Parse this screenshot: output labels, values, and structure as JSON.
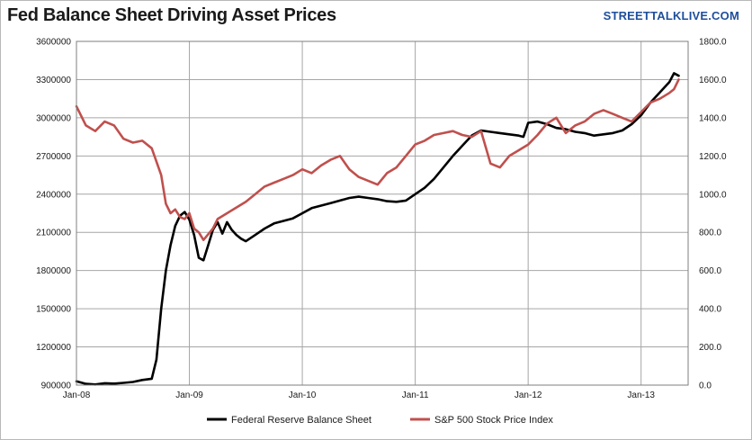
{
  "header": {
    "title": "Fed Balance Sheet Driving Asset Prices",
    "brand": "STREETTALKLIVE.COM"
  },
  "colors": {
    "fed": "#000000",
    "spx": "#c0504d",
    "grid": "#a6a6a6",
    "axis": "#7f7f7f"
  },
  "chart_data": {
    "type": "line",
    "title": "Fed Balance Sheet Driving Asset Prices",
    "x_unit": "months since Jan-08",
    "xlim": [
      0,
      65
    ],
    "x_ticks": [
      {
        "x": 0,
        "label": "Jan-08"
      },
      {
        "x": 12,
        "label": "Jan-09"
      },
      {
        "x": 24,
        "label": "Jan-10"
      },
      {
        "x": 36,
        "label": "Jan-11"
      },
      {
        "x": 48,
        "label": "Jan-12"
      },
      {
        "x": 60,
        "label": "Jan-13"
      }
    ],
    "y_left": {
      "range": [
        900000,
        3600000
      ],
      "ticks": [
        "900000",
        "1200000",
        "1500000",
        "1800000",
        "2100000",
        "2400000",
        "2700000",
        "3000000",
        "3300000",
        "3600000"
      ]
    },
    "y_right": {
      "range": [
        0,
        1800
      ],
      "ticks": [
        "0.0",
        "200.0",
        "400.0",
        "600.0",
        "800.0",
        "1000.0",
        "1200.0",
        "1400.0",
        "1600.0",
        "1800.0"
      ]
    },
    "grid": true,
    "legend_position": "bottom",
    "series": [
      {
        "name": "Federal Reserve Balance Sheet",
        "axis": "left",
        "points": [
          [
            0,
            930000
          ],
          [
            1,
            910000
          ],
          [
            2,
            905000
          ],
          [
            3,
            915000
          ],
          [
            4,
            912000
          ],
          [
            5,
            918000
          ],
          [
            6,
            925000
          ],
          [
            7,
            940000
          ],
          [
            8,
            950000
          ],
          [
            8.5,
            1100000
          ],
          [
            9,
            1500000
          ],
          [
            9.5,
            1800000
          ],
          [
            10,
            2000000
          ],
          [
            10.5,
            2150000
          ],
          [
            11,
            2230000
          ],
          [
            11.5,
            2260000
          ],
          [
            12,
            2200000
          ],
          [
            12.5,
            2080000
          ],
          [
            13,
            1900000
          ],
          [
            13.5,
            1880000
          ],
          [
            14,
            2000000
          ],
          [
            14.5,
            2120000
          ],
          [
            15,
            2180000
          ],
          [
            15.5,
            2090000
          ],
          [
            16,
            2180000
          ],
          [
            16.5,
            2120000
          ],
          [
            17,
            2080000
          ],
          [
            17.5,
            2050000
          ],
          [
            18,
            2030000
          ],
          [
            19,
            2080000
          ],
          [
            20,
            2130000
          ],
          [
            21,
            2170000
          ],
          [
            22,
            2190000
          ],
          [
            23,
            2210000
          ],
          [
            24,
            2250000
          ],
          [
            25,
            2290000
          ],
          [
            26,
            2310000
          ],
          [
            27,
            2330000
          ],
          [
            28,
            2350000
          ],
          [
            29,
            2370000
          ],
          [
            30,
            2380000
          ],
          [
            31,
            2370000
          ],
          [
            32,
            2360000
          ],
          [
            33,
            2345000
          ],
          [
            34,
            2340000
          ],
          [
            35,
            2350000
          ],
          [
            36,
            2400000
          ],
          [
            37,
            2450000
          ],
          [
            38,
            2520000
          ],
          [
            39,
            2610000
          ],
          [
            40,
            2700000
          ],
          [
            41,
            2780000
          ],
          [
            42,
            2860000
          ],
          [
            43,
            2900000
          ],
          [
            44,
            2890000
          ],
          [
            45,
            2880000
          ],
          [
            46,
            2870000
          ],
          [
            47,
            2860000
          ],
          [
            47.5,
            2850000
          ],
          [
            48,
            2960000
          ],
          [
            49,
            2970000
          ],
          [
            50,
            2950000
          ],
          [
            51,
            2920000
          ],
          [
            52,
            2910000
          ],
          [
            53,
            2890000
          ],
          [
            54,
            2880000
          ],
          [
            55,
            2860000
          ],
          [
            56,
            2870000
          ],
          [
            57,
            2880000
          ],
          [
            58,
            2900000
          ],
          [
            59,
            2950000
          ],
          [
            60,
            3020000
          ],
          [
            61,
            3120000
          ],
          [
            62,
            3200000
          ],
          [
            63,
            3280000
          ],
          [
            63.5,
            3350000
          ],
          [
            64,
            3330000
          ]
        ]
      },
      {
        "name": "S&P 500 Stock Price Index",
        "axis": "right",
        "points": [
          [
            0,
            1460
          ],
          [
            1,
            1360
          ],
          [
            2,
            1330
          ],
          [
            3,
            1380
          ],
          [
            4,
            1360
          ],
          [
            5,
            1290
          ],
          [
            6,
            1270
          ],
          [
            7,
            1280
          ],
          [
            8,
            1240
          ],
          [
            9,
            1100
          ],
          [
            9.5,
            950
          ],
          [
            10,
            900
          ],
          [
            10.5,
            920
          ],
          [
            11,
            880
          ],
          [
            11.5,
            870
          ],
          [
            12,
            900
          ],
          [
            12.5,
            820
          ],
          [
            13,
            800
          ],
          [
            13.5,
            760
          ],
          [
            14,
            790
          ],
          [
            14.5,
            820
          ],
          [
            15,
            870
          ],
          [
            16,
            900
          ],
          [
            17,
            930
          ],
          [
            18,
            960
          ],
          [
            19,
            1000
          ],
          [
            20,
            1040
          ],
          [
            21,
            1060
          ],
          [
            22,
            1080
          ],
          [
            23,
            1100
          ],
          [
            24,
            1130
          ],
          [
            25,
            1110
          ],
          [
            26,
            1150
          ],
          [
            27,
            1180
          ],
          [
            28,
            1200
          ],
          [
            29,
            1130
          ],
          [
            30,
            1090
          ],
          [
            31,
            1070
          ],
          [
            32,
            1050
          ],
          [
            33,
            1110
          ],
          [
            34,
            1140
          ],
          [
            35,
            1200
          ],
          [
            36,
            1260
          ],
          [
            37,
            1280
          ],
          [
            38,
            1310
          ],
          [
            39,
            1320
          ],
          [
            40,
            1330
          ],
          [
            41,
            1310
          ],
          [
            42,
            1300
          ],
          [
            43,
            1330
          ],
          [
            44,
            1160
          ],
          [
            45,
            1140
          ],
          [
            46,
            1200
          ],
          [
            47,
            1230
          ],
          [
            48,
            1260
          ],
          [
            49,
            1310
          ],
          [
            50,
            1370
          ],
          [
            51,
            1400
          ],
          [
            52,
            1320
          ],
          [
            53,
            1360
          ],
          [
            54,
            1380
          ],
          [
            55,
            1420
          ],
          [
            56,
            1440
          ],
          [
            57,
            1420
          ],
          [
            58,
            1400
          ],
          [
            59,
            1380
          ],
          [
            60,
            1430
          ],
          [
            61,
            1480
          ],
          [
            62,
            1500
          ],
          [
            63,
            1530
          ],
          [
            63.5,
            1550
          ],
          [
            64,
            1600
          ]
        ]
      }
    ]
  }
}
